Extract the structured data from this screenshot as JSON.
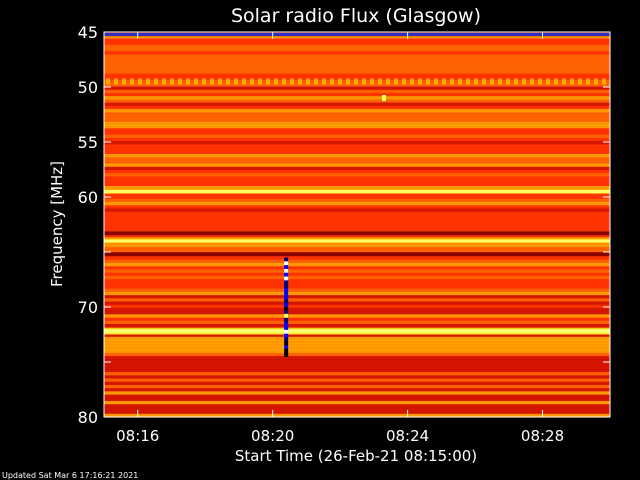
{
  "footer_note": "Updated Sat Mar  6 17:16:21 2021",
  "chart_data": {
    "type": "heatmap",
    "title": "Solar radio Flux (Glasgow)",
    "xlabel": "Start Time (26-Feb-21 08:15:00)",
    "ylabel": "Frequency [MHz]",
    "x_ticks": [
      "08:16",
      "08:20",
      "08:24",
      "08:28"
    ],
    "x_tick_minutes": [
      16,
      20,
      24,
      28
    ],
    "y_ticks": [
      45,
      50,
      55,
      60,
      65,
      70,
      75,
      80
    ],
    "y_tick_labels": [
      "45",
      "50",
      "55",
      "60",
      "",
      "70",
      "",
      "80"
    ],
    "xlim_minutes": [
      15,
      30
    ],
    "ylim_mhz": [
      45,
      80
    ],
    "y_inverted": true,
    "grid": false,
    "colormap": [
      "#0000ff",
      "#8b0000",
      "#cc1000",
      "#ff3300",
      "#ff6a00",
      "#ffaa00",
      "#ffff66"
    ],
    "bright_bands_mhz": [
      49.5,
      59.5,
      64.0,
      72.2
    ],
    "dark_bands_mhz": [
      45.2,
      63.3,
      65.2
    ],
    "burst": {
      "time_minutes": 20.4,
      "freq_range_mhz": [
        65.5,
        74.5
      ]
    },
    "spot": {
      "time_minutes": 23.3,
      "freq_mhz": 51.0
    },
    "colors": {
      "background": "#000000",
      "text": "#ffffff",
      "axis": "#ffffff"
    }
  }
}
